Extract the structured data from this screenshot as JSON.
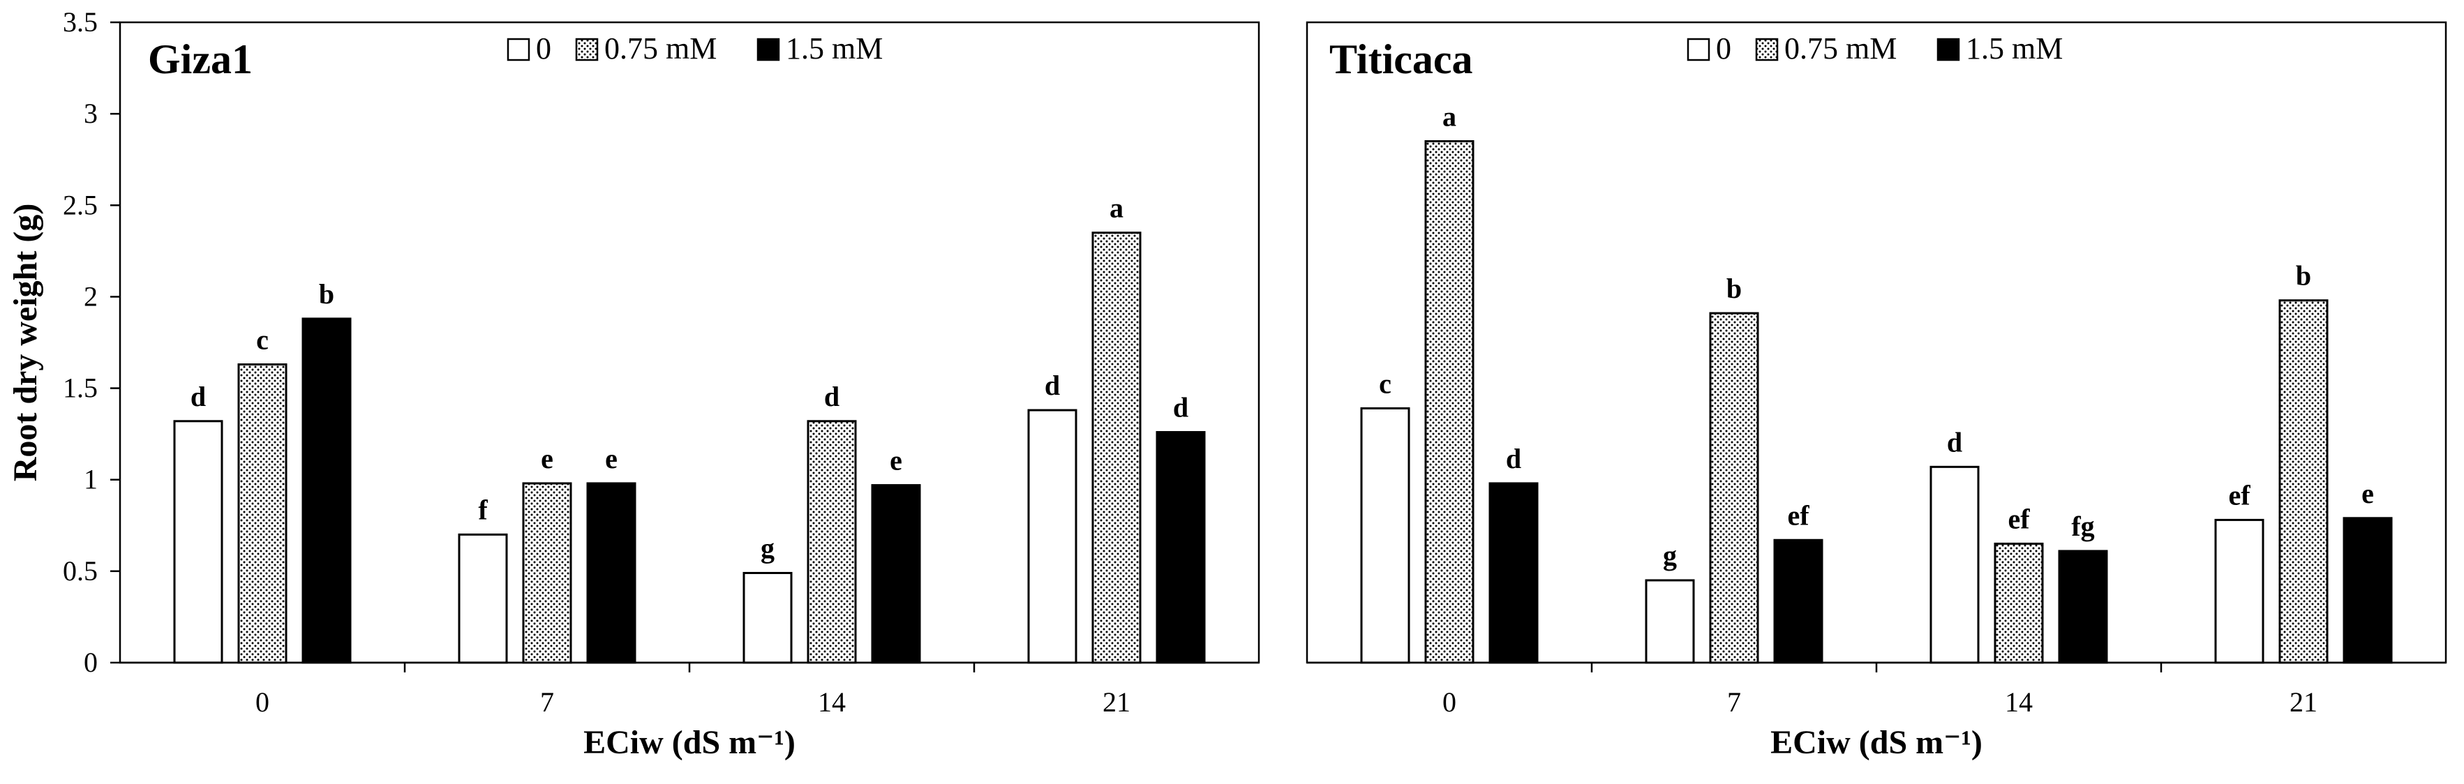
{
  "chart_data": [
    {
      "type": "bar",
      "title": "Giza1",
      "categories": [
        "0",
        "7",
        "14",
        "21"
      ],
      "series": [
        {
          "name": "0",
          "values": [
            1.32,
            0.7,
            0.49,
            1.38
          ]
        },
        {
          "name": "0.75 mM",
          "values": [
            1.63,
            0.98,
            1.32,
            2.35
          ]
        },
        {
          "name": "1.5 mM",
          "values": [
            1.88,
            0.98,
            0.97,
            1.26
          ]
        }
      ],
      "labels": [
        [
          "d",
          "f",
          "g",
          "d"
        ],
        [
          "c",
          "e",
          "d",
          "a"
        ],
        [
          "b",
          "e",
          "e",
          "d"
        ]
      ],
      "xlabel": "ECiw (dS m⁻¹)",
      "ylabel": "Root dry weight (g)",
      "ylim": [
        0,
        3.5
      ],
      "yticks": [
        "0",
        "0.5",
        "1",
        "1.5",
        "2",
        "2.5",
        "3",
        "3.5"
      ],
      "legend": "top-center"
    },
    {
      "type": "bar",
      "title": "Titicaca",
      "categories": [
        "0",
        "7",
        "14",
        "21"
      ],
      "series": [
        {
          "name": "0",
          "values": [
            1.39,
            0.45,
            1.07,
            0.78
          ]
        },
        {
          "name": "0.75 mM",
          "values": [
            2.85,
            1.91,
            0.65,
            1.98
          ]
        },
        {
          "name": "1.5 mM",
          "values": [
            0.98,
            0.67,
            0.61,
            0.79
          ]
        }
      ],
      "labels": [
        [
          "c",
          "g",
          "d",
          "ef"
        ],
        [
          "a",
          "b",
          "ef",
          "b"
        ],
        [
          "d",
          "ef",
          "fg",
          "e"
        ]
      ],
      "xlabel": "ECiw (dS m⁻¹)",
      "ylabel": "",
      "ylim": [
        0,
        3.5
      ],
      "yticks": [],
      "legend": "top-center"
    }
  ],
  "colors": {
    "series_fill": [
      "#ffffff",
      "url(#dots)",
      "#000000"
    ],
    "stroke": "#000000"
  }
}
